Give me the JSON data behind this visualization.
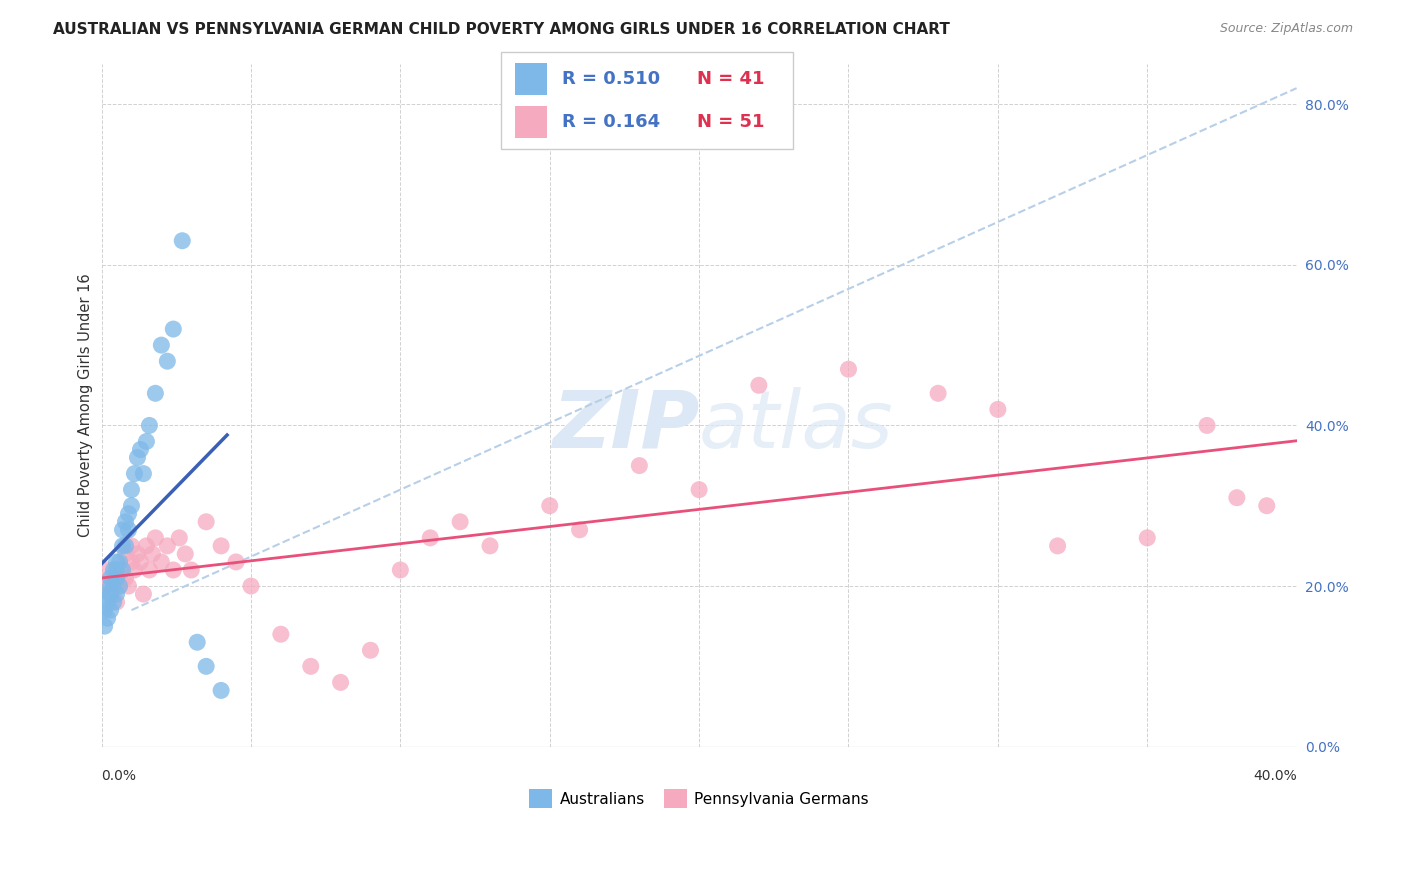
{
  "title": "AUSTRALIAN VS PENNSYLVANIA GERMAN CHILD POVERTY AMONG GIRLS UNDER 16 CORRELATION CHART",
  "source": "Source: ZipAtlas.com",
  "ylabel": "Child Poverty Among Girls Under 16",
  "xlim": [
    0.0,
    0.4
  ],
  "ylim": [
    0.0,
    0.85
  ],
  "ytick_labels": [
    "0.0%",
    "20.0%",
    "40.0%",
    "60.0%",
    "80.0%"
  ],
  "ytick_values": [
    0.0,
    0.2,
    0.4,
    0.6,
    0.8
  ],
  "background_color": "#ffffff",
  "color_australian": "#7db8e8",
  "color_pg": "#f5aabf",
  "trendline_color_australian": "#3a60b5",
  "trendline_color_pg": "#e8507a",
  "diagonal_color": "#b8cfe8",
  "legend_R1": "R = 0.510",
  "legend_N1": "N = 41",
  "legend_R2": "R = 0.164",
  "legend_N2": "N = 51",
  "grid_color": "#cccccc",
  "watermark_color": "#dce8f5",
  "aus_x": [
    0.001,
    0.001,
    0.002,
    0.002,
    0.002,
    0.003,
    0.003,
    0.003,
    0.003,
    0.004,
    0.004,
    0.004,
    0.005,
    0.005,
    0.005,
    0.005,
    0.006,
    0.006,
    0.007,
    0.007,
    0.007,
    0.008,
    0.008,
    0.009,
    0.009,
    0.01,
    0.01,
    0.011,
    0.012,
    0.013,
    0.014,
    0.015,
    0.016,
    0.018,
    0.02,
    0.022,
    0.024,
    0.027,
    0.032,
    0.035,
    0.04
  ],
  "aus_y": [
    0.15,
    0.17,
    0.18,
    0.16,
    0.19,
    0.17,
    0.19,
    0.2,
    0.21,
    0.18,
    0.2,
    0.22,
    0.19,
    0.21,
    0.22,
    0.23,
    0.2,
    0.23,
    0.22,
    0.25,
    0.27,
    0.25,
    0.28,
    0.27,
    0.29,
    0.3,
    0.32,
    0.34,
    0.36,
    0.37,
    0.34,
    0.38,
    0.4,
    0.44,
    0.5,
    0.48,
    0.52,
    0.63,
    0.13,
    0.1,
    0.07
  ],
  "pg_x": [
    0.001,
    0.002,
    0.003,
    0.004,
    0.005,
    0.006,
    0.007,
    0.008,
    0.008,
    0.009,
    0.01,
    0.01,
    0.011,
    0.012,
    0.013,
    0.014,
    0.015,
    0.016,
    0.017,
    0.018,
    0.02,
    0.022,
    0.024,
    0.026,
    0.028,
    0.03,
    0.035,
    0.04,
    0.045,
    0.05,
    0.06,
    0.07,
    0.08,
    0.09,
    0.1,
    0.11,
    0.12,
    0.13,
    0.15,
    0.16,
    0.18,
    0.2,
    0.22,
    0.25,
    0.28,
    0.3,
    0.32,
    0.35,
    0.37,
    0.38,
    0.39
  ],
  "pg_y": [
    0.2,
    0.22,
    0.19,
    0.21,
    0.18,
    0.2,
    0.22,
    0.21,
    0.24,
    0.2,
    0.23,
    0.25,
    0.22,
    0.24,
    0.23,
    0.19,
    0.25,
    0.22,
    0.24,
    0.26,
    0.23,
    0.25,
    0.22,
    0.26,
    0.24,
    0.22,
    0.28,
    0.25,
    0.23,
    0.2,
    0.14,
    0.1,
    0.08,
    0.12,
    0.22,
    0.26,
    0.28,
    0.25,
    0.3,
    0.27,
    0.35,
    0.32,
    0.45,
    0.47,
    0.44,
    0.42,
    0.25,
    0.26,
    0.4,
    0.31,
    0.3
  ],
  "title_fontsize": 11,
  "axis_label_fontsize": 10.5,
  "tick_fontsize": 10,
  "source_fontsize": 9,
  "legend_fontsize": 13
}
